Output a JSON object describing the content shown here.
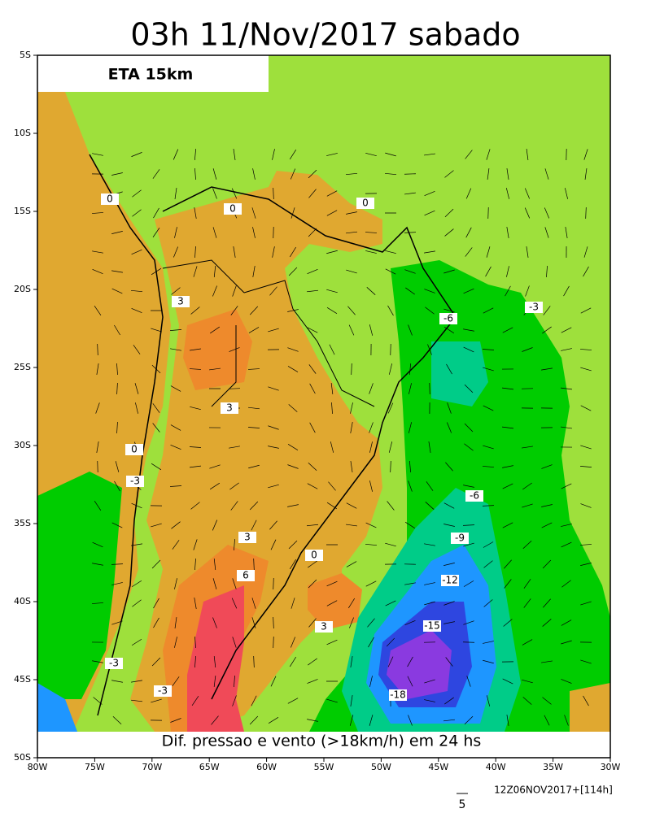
{
  "title": "03h 11/Nov/2017 sabado",
  "model_label": "ETA 15km",
  "caption": "Dif. pressao e vento (>18km/h) em 24 hs",
  "lat_labels": [
    "5S",
    "10S",
    "15S",
    "20S",
    "25S",
    "30S",
    "35S",
    "40S",
    "45S",
    "50S"
  ],
  "lon_labels": [
    "80W",
    "75W",
    "70W",
    "65W",
    "60W",
    "55W",
    "50W",
    "45W",
    "40W",
    "35W",
    "30W"
  ],
  "contour_labels": [
    0,
    0,
    0,
    3,
    3,
    0,
    -3,
    -6,
    -3,
    -6,
    -9,
    -12,
    -15,
    -18,
    3,
    6,
    0,
    3,
    -3,
    -3
  ],
  "vector_key": "5",
  "run_info": "12Z06NOV2017+[114h]"
}
